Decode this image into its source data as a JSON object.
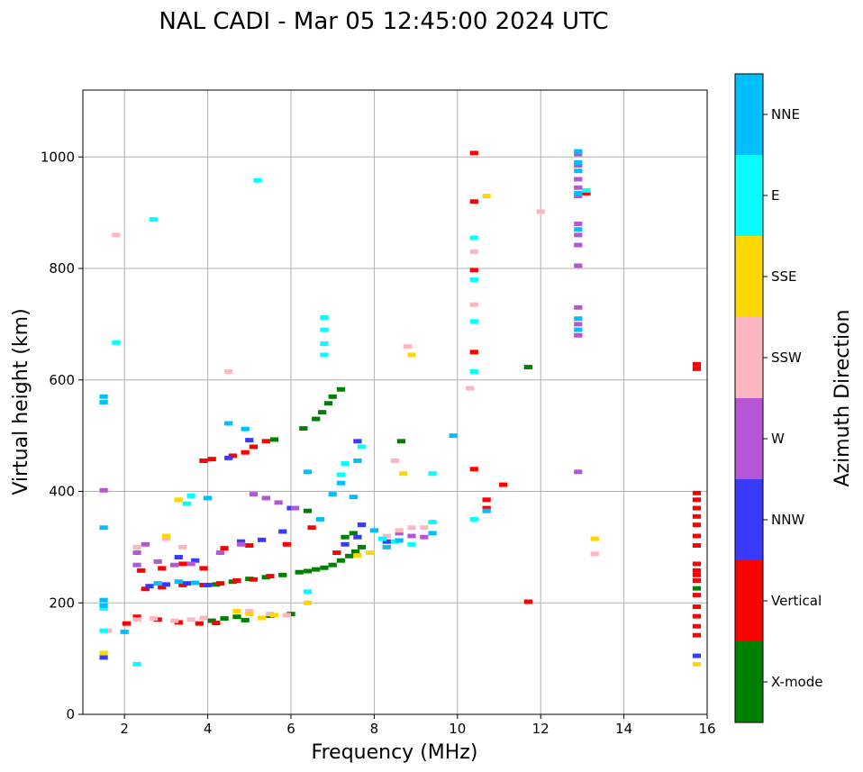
{
  "chart_data": {
    "type": "scatter",
    "title": "NAL CADI - Mar 05 12:45:00 2024 UTC",
    "xlabel": "Frequency (MHz)",
    "ylabel": "Virtual height (km)",
    "xlim": [
      1,
      16
    ],
    "ylim": [
      0,
      1120
    ],
    "xticks": [
      2,
      4,
      6,
      8,
      10,
      12,
      14,
      16
    ],
    "yticks": [
      0,
      200,
      400,
      600,
      800,
      1000
    ],
    "grid": true,
    "colorbar": {
      "label": "Azimuth Direction",
      "position": "right",
      "categories": [
        {
          "name": "X-mode",
          "color": "#008000"
        },
        {
          "name": "Vertical",
          "color": "#ff0000"
        },
        {
          "name": "NNW",
          "color": "#3a3aff"
        },
        {
          "name": "W",
          "color": "#b656d6"
        },
        {
          "name": "SSW",
          "color": "#ffb6c1"
        },
        {
          "name": "SSE",
          "color": "#ffd700"
        },
        {
          "name": "E",
          "color": "#00ffff"
        },
        {
          "name": "NNE",
          "color": "#00bfff"
        }
      ]
    },
    "series": [
      {
        "name": "X-mode",
        "points": [
          [
            4.1,
            168
          ],
          [
            4.4,
            172
          ],
          [
            4.7,
            175
          ],
          [
            4.9,
            169
          ],
          [
            5.5,
            177
          ],
          [
            6.0,
            180
          ],
          [
            4.2,
            233
          ],
          [
            4.6,
            238
          ],
          [
            5.0,
            243
          ],
          [
            5.4,
            246
          ],
          [
            5.8,
            250
          ],
          [
            6.2,
            255
          ],
          [
            6.4,
            257
          ],
          [
            6.6,
            260
          ],
          [
            6.8,
            263
          ],
          [
            7.0,
            268
          ],
          [
            7.2,
            276
          ],
          [
            7.4,
            284
          ],
          [
            7.55,
            292
          ],
          [
            7.7,
            300
          ],
          [
            7.3,
            318
          ],
          [
            7.5,
            325
          ],
          [
            7.7,
            340
          ],
          [
            6.4,
            365
          ],
          [
            6.3,
            513
          ],
          [
            6.6,
            530
          ],
          [
            6.75,
            542
          ],
          [
            6.9,
            558
          ],
          [
            7.0,
            570
          ],
          [
            7.2,
            583
          ],
          [
            5.6,
            493
          ],
          [
            8.65,
            490
          ],
          [
            11.7,
            623
          ],
          [
            15.75,
            226
          ]
        ]
      },
      {
        "name": "Vertical",
        "points": [
          [
            2.05,
            163
          ],
          [
            2.3,
            175
          ],
          [
            2.8,
            170
          ],
          [
            3.3,
            165
          ],
          [
            3.8,
            163
          ],
          [
            4.2,
            164
          ],
          [
            2.5,
            225
          ],
          [
            2.9,
            228
          ],
          [
            3.4,
            232
          ],
          [
            3.9,
            232
          ],
          [
            4.3,
            235
          ],
          [
            4.7,
            240
          ],
          [
            5.1,
            242
          ],
          [
            5.5,
            248
          ],
          [
            2.4,
            258
          ],
          [
            2.9,
            262
          ],
          [
            3.4,
            270
          ],
          [
            3.9,
            262
          ],
          [
            4.4,
            298
          ],
          [
            5.0,
            303
          ],
          [
            5.9,
            305
          ],
          [
            6.5,
            335
          ],
          [
            7.1,
            290
          ],
          [
            3.9,
            455
          ],
          [
            4.1,
            458
          ],
          [
            4.6,
            464
          ],
          [
            4.9,
            470
          ],
          [
            5.1,
            480
          ],
          [
            5.4,
            490
          ],
          [
            10.4,
            1007
          ],
          [
            10.4,
            920
          ],
          [
            10.4,
            797
          ],
          [
            10.4,
            650
          ],
          [
            10.4,
            440
          ],
          [
            10.7,
            385
          ],
          [
            10.7,
            370
          ],
          [
            11.1,
            412
          ],
          [
            11.7,
            202
          ],
          [
            13.1,
            935
          ],
          [
            15.75,
            628
          ],
          [
            15.75,
            620
          ],
          [
            15.75,
            397
          ],
          [
            15.75,
            385
          ],
          [
            15.75,
            370
          ],
          [
            15.75,
            355
          ],
          [
            15.75,
            340
          ],
          [
            15.75,
            320
          ],
          [
            15.75,
            303
          ],
          [
            15.75,
            270
          ],
          [
            15.75,
            258
          ],
          [
            15.75,
            250
          ],
          [
            15.75,
            240
          ],
          [
            15.75,
            214
          ],
          [
            15.75,
            193
          ],
          [
            15.75,
            176
          ],
          [
            15.75,
            158
          ],
          [
            15.75,
            142
          ]
        ]
      },
      {
        "name": "NNW",
        "points": [
          [
            2.6,
            230
          ],
          [
            3.0,
            233
          ],
          [
            3.5,
            235
          ],
          [
            4.0,
            232
          ],
          [
            3.3,
            282
          ],
          [
            3.7,
            276
          ],
          [
            4.8,
            310
          ],
          [
            5.3,
            313
          ],
          [
            5.8,
            328
          ],
          [
            6.0,
            370
          ],
          [
            7.3,
            305
          ],
          [
            7.6,
            318
          ],
          [
            7.7,
            340
          ],
          [
            4.5,
            460
          ],
          [
            5.0,
            492
          ],
          [
            7.6,
            490
          ],
          [
            8.3,
            310
          ],
          [
            1.5,
            102
          ],
          [
            15.75,
            105
          ]
        ]
      },
      {
        "name": "W",
        "points": [
          [
            2.3,
            268
          ],
          [
            2.8,
            274
          ],
          [
            3.2,
            268
          ],
          [
            3.6,
            270
          ],
          [
            4.3,
            290
          ],
          [
            4.8,
            305
          ],
          [
            5.1,
            395
          ],
          [
            5.4,
            388
          ],
          [
            5.7,
            380
          ],
          [
            6.1,
            370
          ],
          [
            8.6,
            325
          ],
          [
            8.9,
            320
          ],
          [
            9.2,
            318
          ],
          [
            1.5,
            402
          ],
          [
            12.9,
            1005
          ],
          [
            12.9,
            985
          ],
          [
            12.9,
            960
          ],
          [
            12.9,
            945
          ],
          [
            12.9,
            930
          ],
          [
            12.9,
            880
          ],
          [
            12.9,
            860
          ],
          [
            12.9,
            842
          ],
          [
            12.9,
            805
          ],
          [
            12.9,
            730
          ],
          [
            12.9,
            700
          ],
          [
            12.9,
            680
          ],
          [
            12.9,
            435
          ],
          [
            2.3,
            290
          ],
          [
            2.5,
            305
          ]
        ]
      },
      {
        "name": "SSW",
        "points": [
          [
            1.6,
            150
          ],
          [
            2.3,
            170
          ],
          [
            2.7,
            172
          ],
          [
            3.2,
            168
          ],
          [
            3.6,
            170
          ],
          [
            3.9,
            173
          ],
          [
            5.0,
            185
          ],
          [
            5.5,
            180
          ],
          [
            5.9,
            178
          ],
          [
            2.3,
            300
          ],
          [
            3.0,
            315
          ],
          [
            3.4,
            300
          ],
          [
            8.3,
            320
          ],
          [
            8.6,
            330
          ],
          [
            8.9,
            335
          ],
          [
            9.2,
            335
          ],
          [
            8.8,
            660
          ],
          [
            8.5,
            455
          ],
          [
            10.3,
            585
          ],
          [
            10.4,
            735
          ],
          [
            10.4,
            830
          ],
          [
            12.0,
            902
          ],
          [
            13.3,
            288
          ],
          [
            1.8,
            860
          ],
          [
            4.5,
            615
          ]
        ]
      },
      {
        "name": "SSE",
        "points": [
          [
            4.7,
            185
          ],
          [
            5.0,
            180
          ],
          [
            5.3,
            173
          ],
          [
            5.6,
            178
          ],
          [
            6.4,
            200
          ],
          [
            3.3,
            385
          ],
          [
            3.0,
            320
          ],
          [
            7.6,
            285
          ],
          [
            7.9,
            290
          ],
          [
            8.7,
            432
          ],
          [
            8.9,
            645
          ],
          [
            10.7,
            930
          ],
          [
            13.3,
            315
          ],
          [
            15.75,
            90
          ],
          [
            1.5,
            110
          ]
        ]
      },
      {
        "name": "E",
        "points": [
          [
            3.6,
            392
          ],
          [
            3.5,
            378
          ],
          [
            6.4,
            220
          ],
          [
            6.8,
            645
          ],
          [
            6.8,
            665
          ],
          [
            6.8,
            690
          ],
          [
            6.8,
            712
          ],
          [
            7.2,
            430
          ],
          [
            7.3,
            450
          ],
          [
            7.7,
            480
          ],
          [
            8.2,
            315
          ],
          [
            8.5,
            310
          ],
          [
            8.9,
            305
          ],
          [
            9.4,
            345
          ],
          [
            9.4,
            432
          ],
          [
            10.4,
            855
          ],
          [
            10.4,
            780
          ],
          [
            10.4,
            705
          ],
          [
            10.4,
            615
          ],
          [
            10.4,
            350
          ],
          [
            5.2,
            958
          ],
          [
            2.7,
            888
          ],
          [
            1.8,
            667
          ],
          [
            1.5,
            150
          ],
          [
            1.5,
            190
          ],
          [
            2.3,
            90
          ],
          [
            13.1,
            940
          ]
        ]
      },
      {
        "name": "NNE",
        "points": [
          [
            1.5,
            570
          ],
          [
            1.5,
            560
          ],
          [
            1.5,
            335
          ],
          [
            1.5,
            205
          ],
          [
            1.5,
            195
          ],
          [
            2.0,
            148
          ],
          [
            2.8,
            235
          ],
          [
            3.3,
            238
          ],
          [
            3.7,
            236
          ],
          [
            4.0,
            388
          ],
          [
            4.5,
            522
          ],
          [
            4.9,
            512
          ],
          [
            6.4,
            435
          ],
          [
            6.7,
            350
          ],
          [
            7.0,
            395
          ],
          [
            7.2,
            415
          ],
          [
            7.5,
            390
          ],
          [
            7.6,
            455
          ],
          [
            8.0,
            330
          ],
          [
            8.3,
            300
          ],
          [
            8.6,
            312
          ],
          [
            9.4,
            325
          ],
          [
            9.9,
            500
          ],
          [
            10.7,
            365
          ],
          [
            12.9,
            1010
          ],
          [
            12.9,
            990
          ],
          [
            12.9,
            975
          ],
          [
            12.9,
            935
          ],
          [
            12.9,
            870
          ],
          [
            12.9,
            690
          ],
          [
            12.9,
            710
          ]
        ]
      }
    ]
  }
}
